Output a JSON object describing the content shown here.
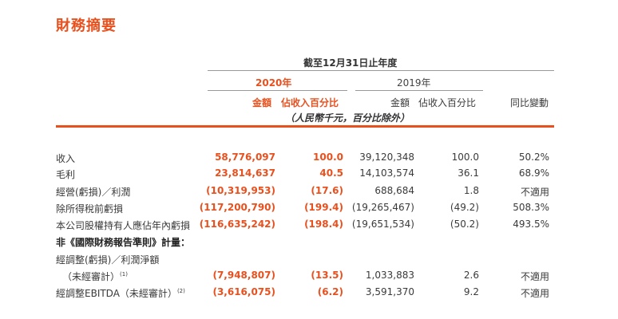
{
  "title": "財務摘要",
  "header": {
    "period": "截至12月31日止年度",
    "year_2020": "2020年",
    "year_2019": "2019年",
    "col_amount_2020": "金額",
    "col_pct_2020": "佔收入百分比",
    "col_amount_2019": "金額",
    "col_pct_2019": "佔收入百分比",
    "col_yoy": "同比變動",
    "unit_note": "（人民幣千元，百分比除外）"
  },
  "rows": [
    {
      "label": "收入",
      "a2020": "58,776,097",
      "p2020": "100.0",
      "a2019": "39,120,348",
      "p2019": "100.0",
      "yoy": "50.2%"
    },
    {
      "label": "毛利",
      "a2020": "23,814,637",
      "p2020": "40.5",
      "a2019": "14,103,574",
      "p2019": "36.1",
      "yoy": "68.9%"
    },
    {
      "label": "經營(虧損)／利潤",
      "a2020": "(10,319,953)",
      "p2020": "(17.6)",
      "a2019": "688,684",
      "p2019": "1.8",
      "yoy": "不適用"
    },
    {
      "label": "除所得稅前虧損",
      "a2020": "(117,200,790)",
      "p2020": "(199.4)",
      "a2019": "(19,265,467)",
      "p2019": "(49.2)",
      "yoy": "508.3%"
    },
    {
      "label": "本公司股權持有人應佔年內虧損",
      "a2020": "(116,635,242)",
      "p2020": "(198.4)",
      "a2019": "(19,651,534)",
      "p2019": "(50.2)",
      "yoy": "493.5%"
    }
  ],
  "non_ifrs": {
    "section_label": "非《國際財務報告準則》計量：",
    "adj_label_line1": "經調整(虧損)／利潤淨額",
    "adj_label_line2": "（未經審計）",
    "adj_note": "(1)",
    "adj": {
      "a2020": "(7,948,807)",
      "p2020": "(13.5)",
      "a2019": "1,033,883",
      "p2019": "2.6",
      "yoy": "不適用"
    },
    "ebitda_label": "經調整EBITDA（未經審計）",
    "ebitda_note": "(2)",
    "ebitda": {
      "a2020": "(3,616,075)",
      "p2020": "(6.2)",
      "a2019": "3,591,370",
      "p2019": "9.2",
      "yoy": "不適用"
    }
  },
  "colors": {
    "accent": "#e8501e",
    "text": "#3a3a3a"
  }
}
